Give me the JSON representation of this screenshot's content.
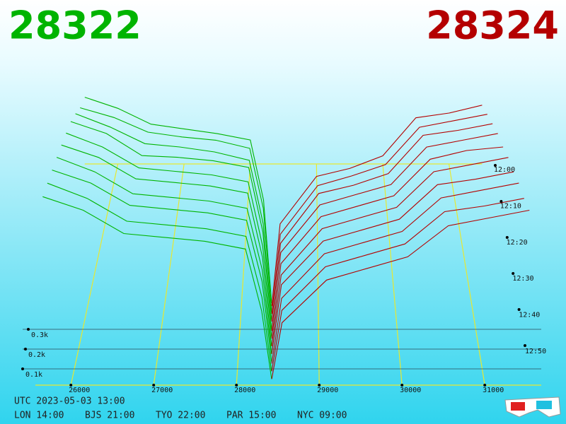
{
  "chart_data": {
    "type": "depth3d",
    "best_bid": 28322,
    "best_ask": 28324,
    "bid_color": "#00b400",
    "ask_color": "#b40000",
    "bid_prices": [
      25500,
      26000,
      26500,
      27000,
      27500,
      28000,
      28200,
      28322
    ],
    "ask_prices": [
      28324,
      28450,
      29000,
      29500,
      30000,
      30500,
      31000,
      31500
    ],
    "series": [
      {
        "bids": [
          1.35,
          1.28,
          1.18,
          1.15,
          1.12,
          1.08,
          0.7,
          0.05
        ],
        "asks": [
          0.03,
          0.55,
          0.85,
          0.9,
          0.98,
          1.22,
          1.25,
          1.3
        ]
      },
      {
        "bids": [
          1.3,
          1.24,
          1.15,
          1.12,
          1.1,
          1.05,
          0.68,
          0.04
        ],
        "asks": [
          0.03,
          0.52,
          0.82,
          0.88,
          0.95,
          1.18,
          1.22,
          1.26
        ]
      },
      {
        "bids": [
          1.28,
          1.2,
          1.1,
          1.08,
          1.05,
          1.0,
          0.62,
          0.04
        ],
        "asks": [
          0.03,
          0.5,
          0.8,
          0.85,
          0.92,
          1.15,
          1.18,
          1.22
        ]
      },
      {
        "bids": [
          1.25,
          1.18,
          1.05,
          1.04,
          1.02,
          0.98,
          0.6,
          0.03
        ],
        "asks": [
          0.02,
          0.48,
          0.76,
          0.82,
          0.88,
          1.1,
          1.14,
          1.18
        ]
      },
      {
        "bids": [
          1.2,
          1.12,
          1.0,
          0.98,
          0.96,
          0.92,
          0.55,
          0.03
        ],
        "asks": [
          0.02,
          0.45,
          0.72,
          0.78,
          0.84,
          1.05,
          1.1,
          1.12
        ]
      },
      {
        "bids": [
          1.15,
          1.08,
          0.96,
          0.94,
          0.92,
          0.88,
          0.52,
          0.02
        ],
        "asks": [
          0.02,
          0.42,
          0.68,
          0.74,
          0.8,
          1.0,
          1.04,
          1.08
        ]
      },
      {
        "bids": [
          1.1,
          1.02,
          0.9,
          0.88,
          0.86,
          0.82,
          0.48,
          0.02
        ],
        "asks": [
          0.02,
          0.4,
          0.64,
          0.7,
          0.76,
          0.95,
          0.98,
          1.02
        ]
      },
      {
        "bids": [
          1.05,
          0.98,
          0.86,
          0.84,
          0.82,
          0.78,
          0.45,
          0.02
        ],
        "asks": [
          0.01,
          0.36,
          0.6,
          0.66,
          0.72,
          0.9,
          0.94,
          0.98
        ]
      },
      {
        "bids": [
          1.0,
          0.92,
          0.8,
          0.78,
          0.76,
          0.72,
          0.4,
          0.01
        ],
        "asks": [
          0.01,
          0.33,
          0.56,
          0.62,
          0.68,
          0.85,
          0.88,
          0.92
        ]
      },
      {
        "bids": [
          0.95,
          0.88,
          0.76,
          0.74,
          0.72,
          0.68,
          0.36,
          0.01
        ],
        "asks": [
          0.01,
          0.3,
          0.52,
          0.58,
          0.64,
          0.8,
          0.84,
          0.88
        ]
      }
    ],
    "xticks": [
      26000,
      27000,
      28000,
      29000,
      30000,
      31000
    ],
    "vticks": [
      {
        "value": 0.1,
        "label": "0.1k"
      },
      {
        "value": 0.2,
        "label": "0.2k"
      },
      {
        "value": 0.3,
        "label": "0.3k"
      }
    ],
    "time_ticks": [
      "12:00",
      "12:10",
      "12:20",
      "12:30",
      "12:40",
      "12:50"
    ]
  },
  "footer": {
    "utc": "UTC 2023-05-03 13:00",
    "clocks": [
      "LON 14:00",
      "BJS 21:00",
      "TYO 22:00",
      "PAR 15:00",
      "NYC 09:00"
    ]
  }
}
